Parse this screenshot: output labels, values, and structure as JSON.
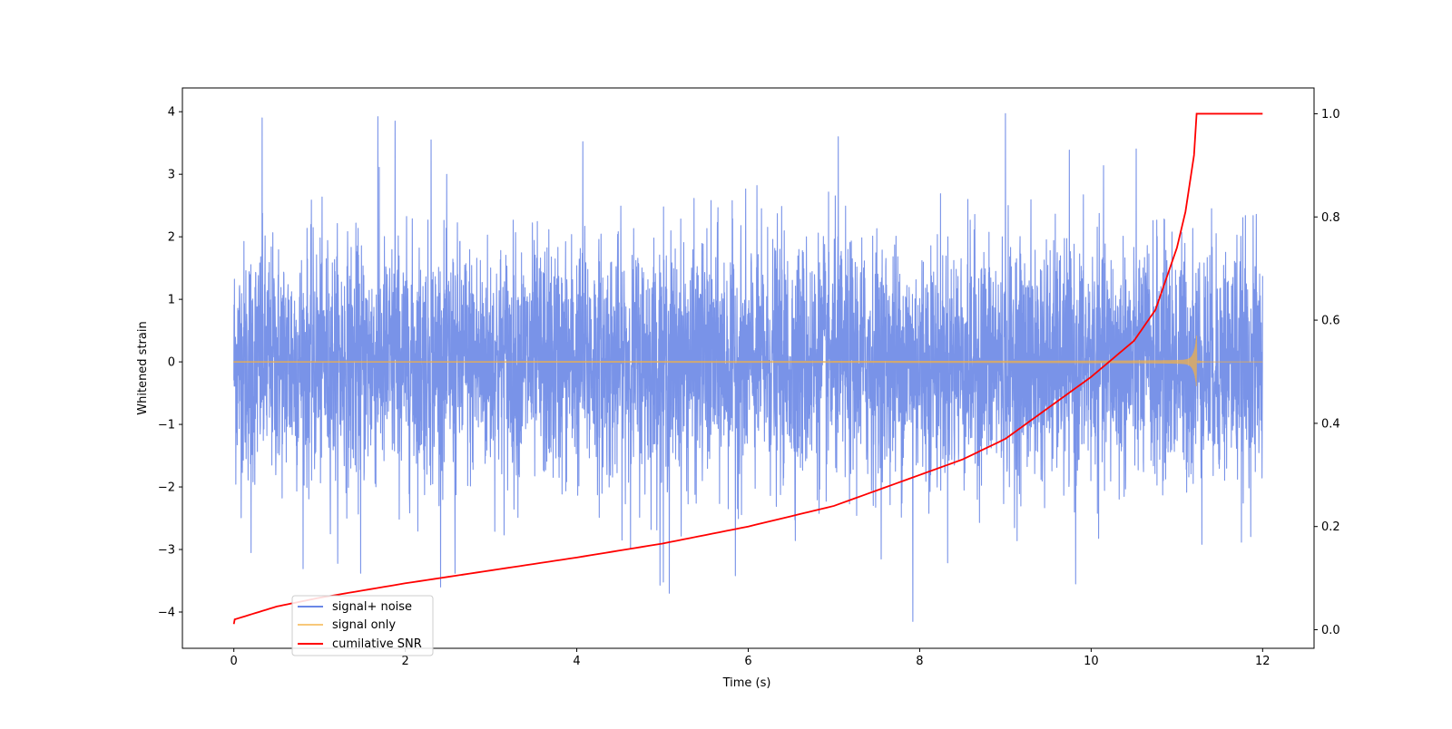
{
  "chart_data": {
    "type": "line",
    "xlabel": "Time (s)",
    "ylabel": "Whitened strain",
    "ylabel_right": "",
    "xlim": [
      -0.6,
      12.6
    ],
    "ylim": [
      -4.58,
      4.38
    ],
    "ylim_right": [
      -0.036,
      1.05
    ],
    "x_ticks": [
      0,
      2,
      4,
      6,
      8,
      10,
      12
    ],
    "y_ticks": [
      -4,
      -3,
      -2,
      -1,
      0,
      1,
      2,
      3,
      4
    ],
    "y_ticks_right": [
      0.0,
      0.2,
      0.4,
      0.6,
      0.8,
      1.0
    ],
    "y_tick_labels": [
      "−4",
      "−3",
      "−2",
      "−1",
      "0",
      "1",
      "2",
      "3",
      "4"
    ],
    "y_tick_labels_right": [
      "0.0",
      "0.2",
      "0.4",
      "0.6",
      "0.8",
      "1.0"
    ],
    "x_tick_labels": [
      "0",
      "2",
      "4",
      "6",
      "8",
      "10",
      "12"
    ],
    "grid": false,
    "legend_position": "lower-left",
    "series": [
      {
        "name": "signal+ noise",
        "axis": "left",
        "color": "#6a87e6",
        "description": "whitened noise plus signal, sampled densely from t=0 to t=12 s",
        "t_range": [
          0,
          12
        ],
        "std": 0.95,
        "extremes": [
          {
            "t": 0.33,
            "y": 3.9
          },
          {
            "t": 1.68,
            "y": 3.92
          },
          {
            "t": 1.88,
            "y": 3.85
          },
          {
            "t": 4.07,
            "y": 3.52
          },
          {
            "t": 2.3,
            "y": 3.55
          },
          {
            "t": 7.05,
            "y": 3.6
          },
          {
            "t": 9.0,
            "y": 3.97
          },
          {
            "t": 7.92,
            "y": -4.15
          },
          {
            "t": 5.08,
            "y": -3.7
          },
          {
            "t": 1.48,
            "y": -3.38
          },
          {
            "t": 2.58,
            "y": -3.38
          },
          {
            "t": 9.82,
            "y": -3.55
          },
          {
            "t": 5.01,
            "y": -3.52
          },
          {
            "t": 0.2,
            "y": -3.05
          },
          {
            "t": 5.85,
            "y": -3.42
          }
        ]
      },
      {
        "name": "signal only",
        "axis": "left",
        "color": "#f5b041",
        "description": "chirp signal that grows toward merger near t=11.23 s",
        "t_range": [
          0,
          12
        ],
        "merger_t": 11.23,
        "peak_amplitude": 0.65
      },
      {
        "name": "cumilative SNR",
        "axis": "right",
        "color": "#ff0000",
        "x": [
          0.0,
          0.01,
          0.5,
          1,
          2,
          3,
          4,
          5,
          6,
          7,
          8,
          8.5,
          9,
          9.5,
          10,
          10.5,
          10.75,
          11.0,
          11.1,
          11.2,
          11.23,
          12.0
        ],
        "values": [
          0.011,
          0.02,
          0.045,
          0.062,
          0.09,
          0.115,
          0.14,
          0.167,
          0.2,
          0.24,
          0.3,
          0.33,
          0.37,
          0.43,
          0.49,
          0.56,
          0.62,
          0.74,
          0.81,
          0.92,
          1.0,
          1.0
        ]
      }
    ]
  }
}
